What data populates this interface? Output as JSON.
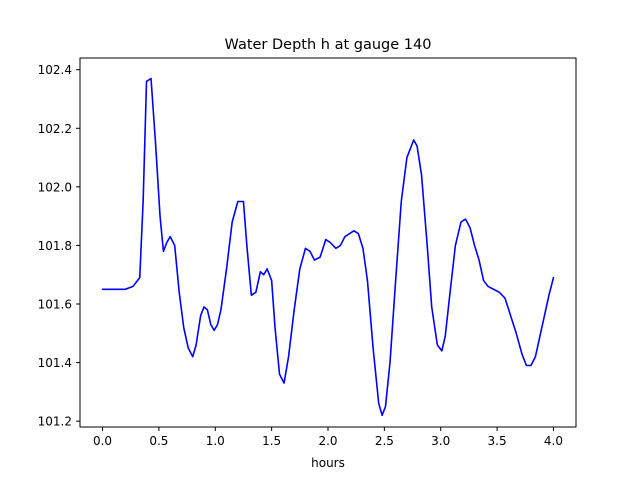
{
  "chart_data": {
    "type": "line",
    "title": "Water Depth h at gauge 140",
    "xlabel": "hours",
    "ylabel": "",
    "xlim": [
      -0.2,
      4.2
    ],
    "ylim": [
      101.18,
      102.44
    ],
    "xticks": [
      0.0,
      0.5,
      1.0,
      1.5,
      2.0,
      2.5,
      3.0,
      3.5,
      4.0
    ],
    "xtick_labels": [
      "0.0",
      "0.5",
      "1.0",
      "1.5",
      "2.0",
      "2.5",
      "3.0",
      "3.5",
      "4.0"
    ],
    "yticks": [
      101.2,
      101.4,
      101.6,
      101.8,
      102.0,
      102.2,
      102.4
    ],
    "ytick_labels": [
      "101.2",
      "101.4",
      "101.6",
      "101.8",
      "102.0",
      "102.2",
      "102.4"
    ],
    "grid": false,
    "line_color": "#0000ff",
    "series": [
      {
        "x": [
          0.0,
          0.1,
          0.2,
          0.27,
          0.33,
          0.36,
          0.39,
          0.43,
          0.47,
          0.51,
          0.54,
          0.57,
          0.6,
          0.64,
          0.68,
          0.72,
          0.76,
          0.8,
          0.83,
          0.87,
          0.9,
          0.93,
          0.96,
          0.99,
          1.02,
          1.05,
          1.1,
          1.15,
          1.2,
          1.25,
          1.28,
          1.32,
          1.36,
          1.4,
          1.43,
          1.46,
          1.5,
          1.53,
          1.57,
          1.61,
          1.65,
          1.7,
          1.75,
          1.8,
          1.84,
          1.88,
          1.93,
          1.98,
          2.02,
          2.07,
          2.11,
          2.15,
          2.19,
          2.23,
          2.27,
          2.31,
          2.35,
          2.4,
          2.45,
          2.48,
          2.51,
          2.55,
          2.6,
          2.65,
          2.7,
          2.76,
          2.79,
          2.83,
          2.88,
          2.92,
          2.97,
          3.01,
          3.04,
          3.08,
          3.13,
          3.18,
          3.22,
          3.26,
          3.3,
          3.34,
          3.38,
          3.42,
          3.47,
          3.52,
          3.57,
          3.62,
          3.67,
          3.72,
          3.76,
          3.8,
          3.84,
          3.88,
          3.92,
          3.96,
          4.0
        ],
        "y": [
          101.65,
          101.65,
          101.65,
          101.66,
          101.69,
          101.95,
          102.36,
          102.37,
          102.15,
          101.9,
          101.78,
          101.81,
          101.83,
          101.8,
          101.64,
          101.52,
          101.45,
          101.42,
          101.46,
          101.56,
          101.59,
          101.58,
          101.53,
          101.51,
          101.53,
          101.58,
          101.72,
          101.88,
          101.95,
          101.95,
          101.8,
          101.63,
          101.64,
          101.71,
          101.7,
          101.72,
          101.68,
          101.52,
          101.36,
          101.33,
          101.42,
          101.58,
          101.72,
          101.79,
          101.78,
          101.75,
          101.76,
          101.82,
          101.81,
          101.79,
          101.8,
          101.83,
          101.84,
          101.85,
          101.84,
          101.79,
          101.68,
          101.45,
          101.26,
          101.22,
          101.25,
          101.4,
          101.68,
          101.95,
          102.1,
          102.16,
          102.14,
          102.04,
          101.8,
          101.59,
          101.46,
          101.44,
          101.49,
          101.63,
          101.8,
          101.88,
          101.89,
          101.86,
          101.8,
          101.75,
          101.68,
          101.66,
          101.65,
          101.64,
          101.62,
          101.56,
          101.5,
          101.43,
          101.39,
          101.39,
          101.42,
          101.49,
          101.56,
          101.63,
          101.69
        ]
      }
    ]
  }
}
